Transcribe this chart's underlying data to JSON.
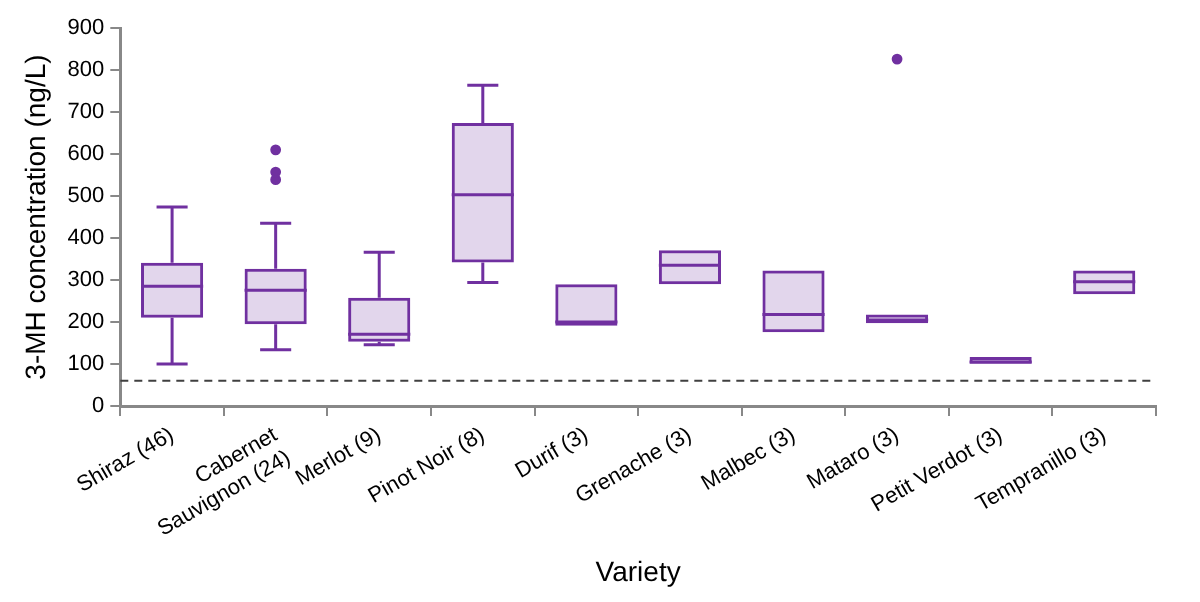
{
  "chart_data": {
    "type": "box",
    "xlabel": "Variety",
    "ylabel": "3-MH concentration (ng/L)",
    "categories": [
      "Shiraz (46)",
      "Cabernet Sauvignon (24)",
      "Merlot (9)",
      "Pinot Noir (8)",
      "Durif (3)",
      "Grenache (3)",
      "Malbec (3)",
      "Mataro (3)",
      "Petit Verdot (3)",
      "Tempranillo (3)"
    ],
    "color": "#7030a0",
    "boxes": [
      {
        "low": 100,
        "q1": 210,
        "median": 285,
        "q3": 341,
        "high": 474
      },
      {
        "low": 134,
        "q1": 195,
        "median": 276,
        "q3": 327,
        "high": 435,
        "outliers": [
          610,
          557,
          539
        ]
      },
      {
        "low": 146,
        "q1": 153,
        "median": 171,
        "q3": 258,
        "high": 366
      },
      {
        "low": 294,
        "q1": 342,
        "median": 503,
        "q3": 674,
        "high": 764
      },
      {
        "low": 191,
        "q1": 191,
        "median": 200,
        "q3": 290,
        "high": 290
      },
      {
        "low": 290,
        "q1": 290,
        "median": 335,
        "q3": 371,
        "high": 371
      },
      {
        "low": 176,
        "q1": 176,
        "median": 218,
        "q3": 323,
        "high": 323
      },
      {
        "low": 197,
        "q1": 197,
        "median": 205,
        "q3": 218,
        "high": 218,
        "outliers": [
          826
        ]
      },
      {
        "low": 101,
        "q1": 101,
        "median": 105,
        "q3": 117,
        "high": 117
      },
      {
        "low": 266,
        "q1": 266,
        "median": 296,
        "q3": 323,
        "high": 323
      }
    ],
    "ylim": [
      0,
      900
    ],
    "yticks": [
      0,
      100,
      200,
      300,
      400,
      500,
      600,
      700,
      800,
      900
    ],
    "ref_lines": [
      {
        "axis": "y",
        "value": 60,
        "line_style": "dashed",
        "color": "#404040"
      }
    ],
    "grid": false,
    "legend": false
  }
}
